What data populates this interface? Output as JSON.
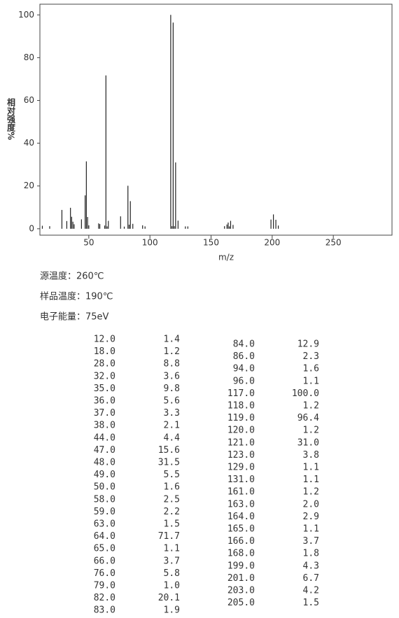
{
  "chart_data": {
    "type": "stick",
    "x_label": "m/z",
    "y_label": "相对强度%",
    "x": [
      12,
      18,
      28,
      32,
      35,
      36,
      37,
      38,
      44,
      47,
      48,
      49,
      50,
      58,
      59,
      63,
      64,
      65,
      66,
      76,
      79,
      82,
      83,
      84,
      86,
      94,
      96,
      117,
      118,
      119,
      120,
      121,
      123,
      129,
      131,
      161,
      163,
      164,
      165,
      166,
      168,
      199,
      201,
      203,
      205
    ],
    "values": [
      1.4,
      1.2,
      8.8,
      3.6,
      9.8,
      5.6,
      3.3,
      2.1,
      4.4,
      15.6,
      31.5,
      5.5,
      1.6,
      2.5,
      2.2,
      1.5,
      71.7,
      1.1,
      3.7,
      5.8,
      1.0,
      20.1,
      1.9,
      12.9,
      2.3,
      1.6,
      1.1,
      100.0,
      1.2,
      96.4,
      1.2,
      31.0,
      3.8,
      1.1,
      1.1,
      1.2,
      2.0,
      2.9,
      1.1,
      3.7,
      1.8,
      4.3,
      6.7,
      4.2,
      1.5
    ],
    "color": "#222222",
    "xlim": [
      10,
      298
    ],
    "ylim": [
      -3,
      105
    ],
    "xticks": [
      50,
      100,
      150,
      200,
      250
    ],
    "yticks": [
      0,
      20,
      40,
      60,
      80,
      100
    ]
  },
  "conditions": [
    "源温度：260℃",
    "样品温度：190℃",
    "电子能量：75eV"
  ],
  "peak_table": {
    "left": [
      [
        "12.0",
        "1.4"
      ],
      [
        "18.0",
        "1.2"
      ],
      [
        "28.0",
        "8.8"
      ],
      [
        "32.0",
        "3.6"
      ],
      [
        "35.0",
        "9.8"
      ],
      [
        "36.0",
        "5.6"
      ],
      [
        "37.0",
        "3.3"
      ],
      [
        "38.0",
        "2.1"
      ],
      [
        "44.0",
        "4.4"
      ],
      [
        "47.0",
        "15.6"
      ],
      [
        "48.0",
        "31.5"
      ],
      [
        "49.0",
        "5.5"
      ],
      [
        "50.0",
        "1.6"
      ],
      [
        "58.0",
        "2.5"
      ],
      [
        "59.0",
        "2.2"
      ],
      [
        "63.0",
        "1.5"
      ],
      [
        "64.0",
        "71.7"
      ],
      [
        "65.0",
        "1.1"
      ],
      [
        "66.0",
        "3.7"
      ],
      [
        "76.0",
        "5.8"
      ],
      [
        "79.0",
        "1.0"
      ],
      [
        "82.0",
        "20.1"
      ],
      [
        "83.0",
        "1.9"
      ]
    ],
    "right": [
      [
        "84.0",
        "12.9"
      ],
      [
        "86.0",
        "2.3"
      ],
      [
        "94.0",
        "1.6"
      ],
      [
        "96.0",
        "1.1"
      ],
      [
        "117.0",
        "100.0"
      ],
      [
        "118.0",
        "1.2"
      ],
      [
        "119.0",
        "96.4"
      ],
      [
        "120.0",
        "1.2"
      ],
      [
        "121.0",
        "31.0"
      ],
      [
        "123.0",
        "3.8"
      ],
      [
        "129.0",
        "1.1"
      ],
      [
        "131.0",
        "1.1"
      ],
      [
        "161.0",
        "1.2"
      ],
      [
        "163.0",
        "2.0"
      ],
      [
        "164.0",
        "2.9"
      ],
      [
        "165.0",
        "1.1"
      ],
      [
        "166.0",
        "3.7"
      ],
      [
        "168.0",
        "1.8"
      ],
      [
        "199.0",
        "4.3"
      ],
      [
        "201.0",
        "6.7"
      ],
      [
        "203.0",
        "4.2"
      ],
      [
        "205.0",
        "1.5"
      ]
    ]
  }
}
